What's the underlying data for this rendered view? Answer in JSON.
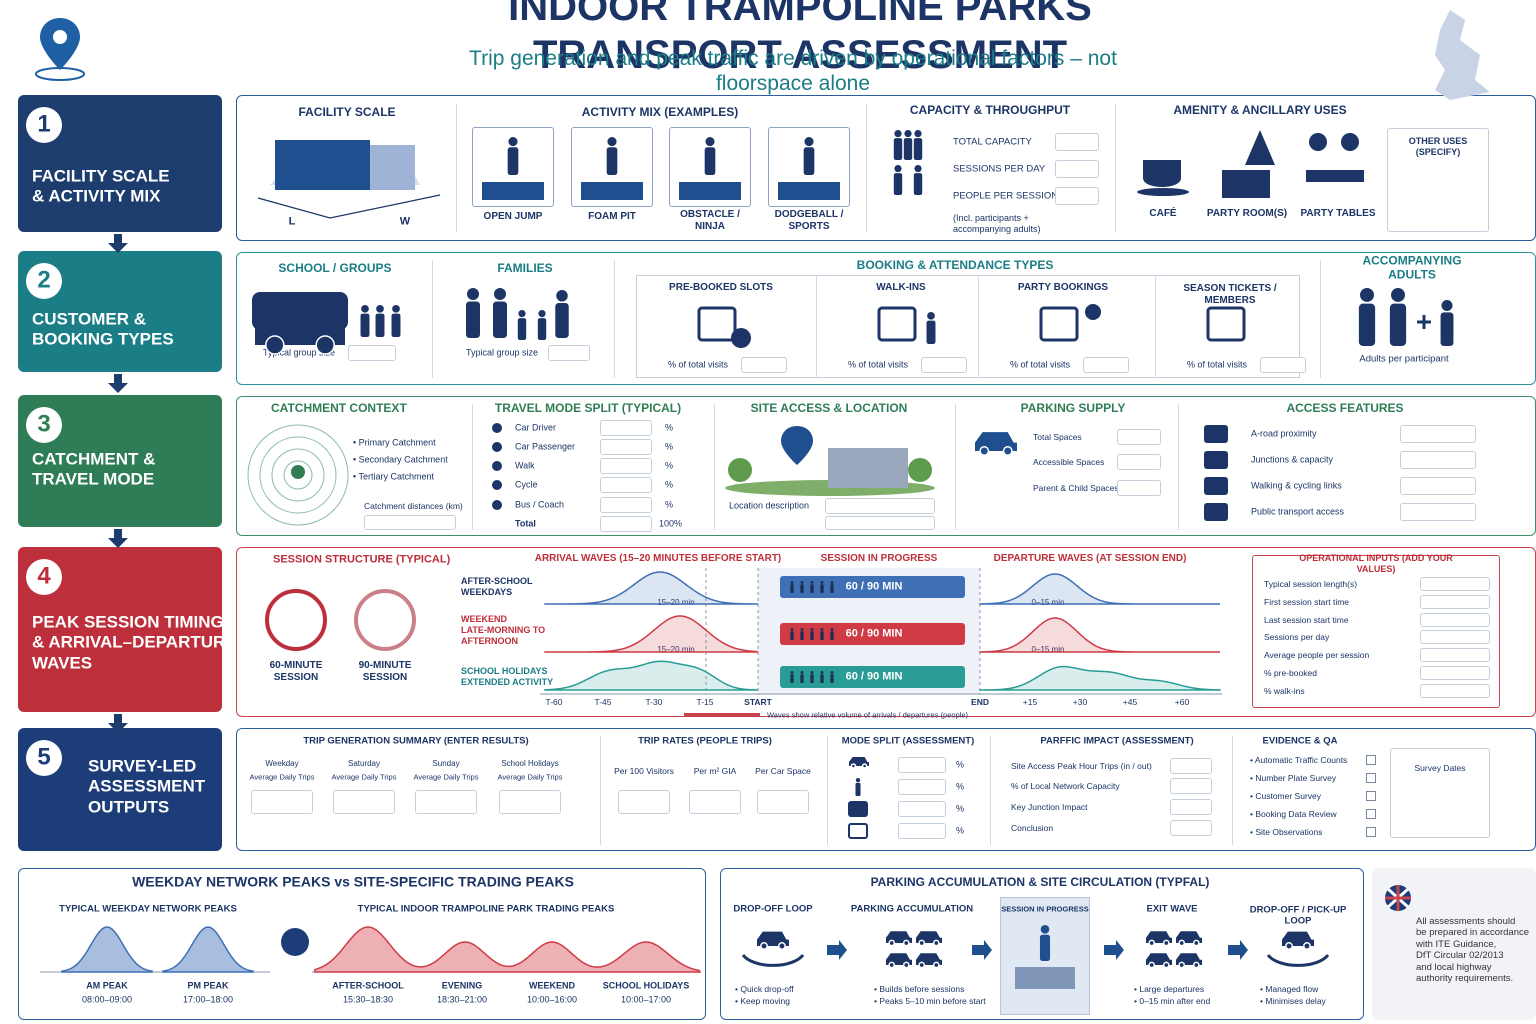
{
  "header": {
    "title": "INDOOR TRAMPOLINE PARKS TRANSPORT ASSESSMENT",
    "subtitle": "Trip generation and peak traffic are driven by operational factors – not floorspace alone"
  },
  "steps": [
    {
      "number": "1",
      "label": "FACILITY SCALE\n& ACTIVITY MIX"
    },
    {
      "number": "2",
      "label": "CUSTOMER &\nBOOKING TYPES"
    },
    {
      "number": "3",
      "label": "CATCHMENT &\nTRAVEL MODE"
    },
    {
      "number": "4",
      "label": "PEAK SESSION TIMING\n& ARRIVAL–DEPARTURE\nWAVES"
    },
    {
      "number": "5",
      "label": "SURVEY-LED\nASSESSMENT\nOUTPUTS"
    }
  ],
  "facility": {
    "scale": {
      "title": "FACILITY SCALE",
      "length": "L",
      "width": "W"
    },
    "activity_mix": {
      "title": "ACTIVITY MIX (EXAMPLES)",
      "items": [
        "OPEN JUMP",
        "FOAM PIT",
        "OBSTACLE /\nNINJA",
        "DODGEBALL /\nSPORTS"
      ]
    },
    "capacity": {
      "title": "CAPACITY & THROUGHPUT",
      "fields": [
        "TOTAL CAPACITY",
        "SESSIONS PER DAY",
        "PEOPLE PER SESSION"
      ],
      "note": "(Incl. participants +\naccompanying adults)"
    },
    "amenity": {
      "title": "AMENITY & ANCILLARY USES",
      "items": [
        "CAFÉ",
        "PARTY ROOM(S)",
        "PARTY TABLES"
      ],
      "other": "OTHER USES\n(SPECIFY)"
    }
  },
  "customers": {
    "school": {
      "title": "SCHOOL / GROUPS",
      "field": "Typical group size"
    },
    "families": {
      "title": "FAMILIES",
      "field": "Typical group size"
    },
    "booking": {
      "title": "BOOKING & ATTENDANCE TYPES",
      "types": [
        {
          "title": "PRE-BOOKED SLOTS",
          "field": "% of total visits"
        },
        {
          "title": "WALK-INS",
          "field": "% of total visits"
        },
        {
          "title": "PARTY BOOKINGS",
          "field": "% of total visits"
        },
        {
          "title": "SEASON TICKETS /\nMEMBERS",
          "field": "% of total visits"
        }
      ]
    },
    "adults": {
      "title": "ACCOMPANYING ADULTS",
      "field": "Adults per participant"
    }
  },
  "catchment": {
    "context": {
      "title": "CATCHMENT CONTEXT",
      "items": [
        "• Primary Catchment",
        "• Secondary Catchment",
        "• Tertiary Catchment"
      ],
      "field": "Catchment distances (km)"
    },
    "mode_split": {
      "title": "TRAVEL MODE SPLIT (TYPICAL)",
      "modes": [
        "Car Driver",
        "Car Passenger",
        "Walk",
        "Cycle",
        "Bus / Coach"
      ],
      "unit": "%",
      "total": "Total",
      "total_value": "100%"
    },
    "site_access": {
      "title": "SITE ACCESS & LOCATION",
      "field": "Location description"
    },
    "parking": {
      "title": "PARKING SUPPLY",
      "fields": [
        "Total Spaces",
        "Accessible Spaces",
        "Parent & Child Spaces"
      ]
    },
    "access_features": {
      "title": "ACCESS FEATURES",
      "items": [
        "A-road proximity",
        "Junctions & capacity",
        "Walking & cycling links",
        "Public transport access"
      ]
    }
  },
  "timing": {
    "structure": {
      "title": "SESSION STRUCTURE (TYPICAL)",
      "sessions": [
        {
          "value": "60",
          "unit": "MIN",
          "label": "60-MINUTE\nSESSION"
        },
        {
          "value": "90",
          "unit": "MIN",
          "label": "90-MINUTE\nSESSION"
        }
      ]
    },
    "arrival_title": "ARRIVAL WAVES (15–20 MINUTES BEFORE START)",
    "progress_title": "SESSION IN PROGRESS",
    "departure_title": "DEPARTURE WAVES (AT SESSION END)",
    "rows": [
      {
        "label": "AFTER-SCHOOL\nWEEKDAYS",
        "session": "60 / 90 MIN",
        "arrival": "15–20 min",
        "departure": "0–15 min"
      },
      {
        "label": "WEEKEND\nLATE-MORNING TO\nAFTERNOON",
        "session": "60 / 90 MIN",
        "arrival": "15–20 min",
        "departure": "0–15 min"
      },
      {
        "label": "SCHOOL HOLIDAYS\nEXTENDED ACTIVITY",
        "session": "60 / 90 MIN"
      }
    ],
    "axis": [
      "T-60",
      "T-45",
      "T-30",
      "T-15",
      "START",
      "END",
      "+15",
      "+30",
      "+45",
      "+60"
    ],
    "axis_note": "Waves show relative volume of arrivals / departures (people)",
    "inputs": {
      "title": "OPERATIONAL INPUTS (ADD YOUR VALUES)",
      "fields": [
        "Typical session length(s)",
        "First session start time",
        "Last session start time",
        "Sessions per day",
        "Average people per session",
        "% pre-booked",
        "% walk-ins"
      ]
    }
  },
  "outputs": {
    "trip_summary": {
      "title": "TRIP GENERATION SUMMARY (ENTER RESULTS)",
      "columns": [
        {
          "day": "Weekday",
          "metric": "Average Daily Trips"
        },
        {
          "day": "Saturday",
          "metric": "Average Daily Trips"
        },
        {
          "day": "Sunday",
          "metric": "Average Daily Trips"
        },
        {
          "day": "School Holidays",
          "metric": "Average Daily Trips"
        }
      ]
    },
    "trip_rates": {
      "title": "TRIP RATES (PEOPLE TRIPS)",
      "items": [
        "Per 100 Visitors",
        "Per m² GIA",
        "Per Car Space"
      ]
    },
    "mode_split": {
      "title": "MODE SPLIT (ASSESSMENT)",
      "unit": "%"
    },
    "impact": {
      "title": "PARFFIC IMPACT (ASSESSMENT)",
      "items": [
        "Site Access Peak Hour Trips (in / out)",
        "% of Local Network Capacity",
        "Key Junction Impact",
        "Conclusion"
      ]
    },
    "evidence": {
      "title": "EVIDENCE & QA",
      "items": [
        "• Automatic Traffic Counts",
        "• Number Plate Survey",
        "• Customer Survey",
        "• Booking Data Review",
        "• Site Observations"
      ],
      "survey_dates": "Survey Dates"
    }
  },
  "peaks": {
    "title": "WEEKDAY NETWORK PEAKS vs SITE-SPECIFIC TRADING PEAKS",
    "network_title": "TYPICAL WEEKDAY NETWORK PEAKS",
    "network": [
      {
        "name": "AM PEAK",
        "time": "08:00–09:00"
      },
      {
        "name": "PM PEAK",
        "time": "17:00–18:00"
      }
    ],
    "vs": "VS",
    "trading_title": "TYPICAL INDOOR TRAMPOLINE PARK TRADING PEAKS",
    "trading": [
      {
        "name": "AFTER-SCHOOL",
        "time": "15:30–18:30"
      },
      {
        "name": "EVENING",
        "time": "18:30–21:00"
      },
      {
        "name": "WEEKEND",
        "time": "10:00–16:00"
      },
      {
        "name": "SCHOOL HOLIDAYS",
        "time": "10:00–17:00"
      }
    ]
  },
  "circulation": {
    "title": "PARKING ACCUMULATION & SITE CIRCULATION (TYPFAL)",
    "stages": [
      {
        "title": "DROP-OFF LOOP",
        "notes": [
          "• Quick drop-off",
          "• Keep moving"
        ]
      },
      {
        "title": "PARKING ACCUMULATION",
        "notes": [
          "• Builds before sessions",
          "• Peaks 5–10 min before start"
        ]
      },
      {
        "title": "SESSION IN PROGRESS"
      },
      {
        "title": "EXIT WAVE",
        "notes": [
          "• Large departures",
          "• 0–15 min after end"
        ]
      },
      {
        "title": "DROP-OFF / PICK-UP\nLOOP",
        "notes": [
          "• Managed flow",
          "• Minimises delay"
        ]
      }
    ]
  },
  "note": "All assessments should\nbe prepared in accordance\nwith ITE Guidance,\nDfT Circular 02/2013\nand local highway\nauthority requirements."
}
